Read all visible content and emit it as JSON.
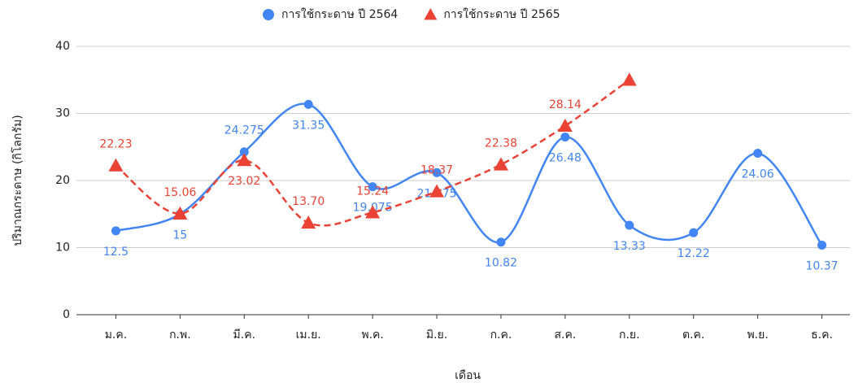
{
  "chart_data": {
    "type": "line",
    "categories": [
      "ม.ค.",
      "ก.พ.",
      "มี.ค.",
      "เม.ย.",
      "พ.ค.",
      "มิ.ย.",
      "ก.ค.",
      "ส.ค.",
      "ก.ย.",
      "ต.ค.",
      "พ.ย.",
      "ธ.ค."
    ],
    "series": [
      {
        "name": "การใช้กระดาษ ปี 2564",
        "color": "#4285f4",
        "marker": "circle",
        "dashed": false,
        "values": [
          12.5,
          15,
          24.275,
          31.35,
          19.075,
          21.175,
          10.82,
          26.48,
          13.33,
          12.22,
          24.06,
          10.37
        ]
      },
      {
        "name": "การใช้กระดาษ ปี 2565",
        "color": "#ea4335",
        "marker": "triangle",
        "dashed": true,
        "values": [
          22.23,
          15.06,
          23.02,
          13.7,
          15.24,
          18.37,
          22.38,
          28.14,
          35,
          null,
          null,
          null
        ],
        "value_labels": [
          "22.23",
          "15.06",
          "23.02",
          "13.70",
          "15.24",
          "18.37",
          "22.38",
          "28.14",
          null,
          null,
          null,
          null
        ]
      }
    ],
    "ylim": [
      0,
      40
    ],
    "yticks": [
      0,
      10,
      20,
      30,
      40
    ],
    "grid": true,
    "x_label": "เดือน",
    "y_label": "ปริมาณกระดาษ (กิโลกรัม)",
    "legend": "top"
  }
}
